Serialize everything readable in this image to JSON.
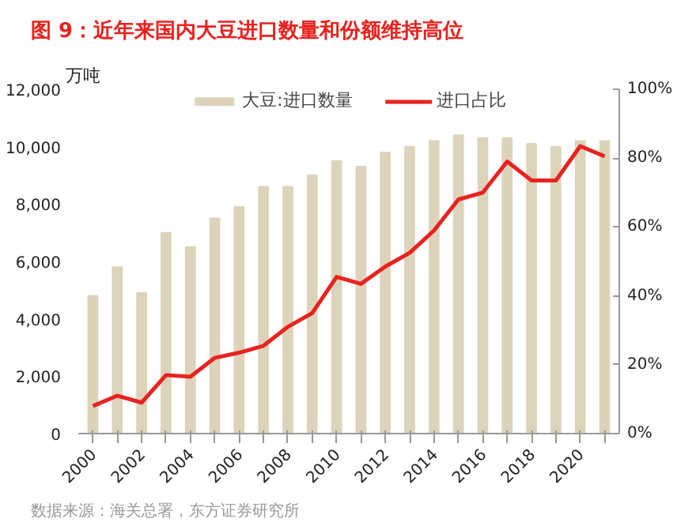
{
  "chart_data": {
    "type": "bar",
    "title": "图 9：近年来国内大豆进口数量和份额维持高位",
    "ylabel": "万吨",
    "categories": [
      "2000",
      null,
      "2002",
      null,
      "2004",
      null,
      "2006",
      null,
      "2008",
      null,
      "2010",
      null,
      "2012",
      null,
      "2014",
      null,
      "2016",
      null,
      "2018",
      null,
      "2020",
      null
    ],
    "series": [
      {
        "name": "大豆:进口数量",
        "color": "#ddd3bb",
        "values": [
          4800,
          5800,
          4900,
          7000,
          6500,
          7500,
          7900,
          8600,
          8600,
          9000,
          9500,
          9300,
          9800,
          10000,
          10200,
          10400,
          10300,
          10300,
          10100,
          10000,
          10200,
          10200
        ]
      },
      {
        "name": "进口占比",
        "type": "line",
        "axis": "y2",
        "color": "#e8231f",
        "values": [
          8,
          11,
          9,
          17,
          16.5,
          22,
          23.5,
          25.5,
          31,
          35,
          45.5,
          43.5,
          48.5,
          52.5,
          59,
          68,
          70,
          79,
          73.5,
          73.5,
          83.5,
          80.5
        ]
      }
    ],
    "ylim": [
      0,
      12000
    ],
    "yticks": [
      {
        "value": 0,
        "label": "0"
      },
      {
        "value": 2000,
        "label": "2,000"
      },
      {
        "value": 4000,
        "label": "4,000"
      },
      {
        "value": 6000,
        "label": "6,000"
      },
      {
        "value": 8000,
        "label": "8,000"
      },
      {
        "value": 10000,
        "label": "10,000"
      },
      {
        "value": 12000,
        "label": "12,000"
      }
    ],
    "y2lim": [
      0,
      100
    ],
    "y2ticks": [
      {
        "value": 0,
        "label": "0%"
      },
      {
        "value": 20,
        "label": "20%"
      },
      {
        "value": 40,
        "label": "40%"
      },
      {
        "value": 60,
        "label": "60%"
      },
      {
        "value": 80,
        "label": "80%"
      },
      {
        "value": 100,
        "label": "100%"
      }
    ],
    "legend": "top",
    "grid": false,
    "annotations": [
      "数据来源：海关总署，东方证券研究所"
    ]
  }
}
